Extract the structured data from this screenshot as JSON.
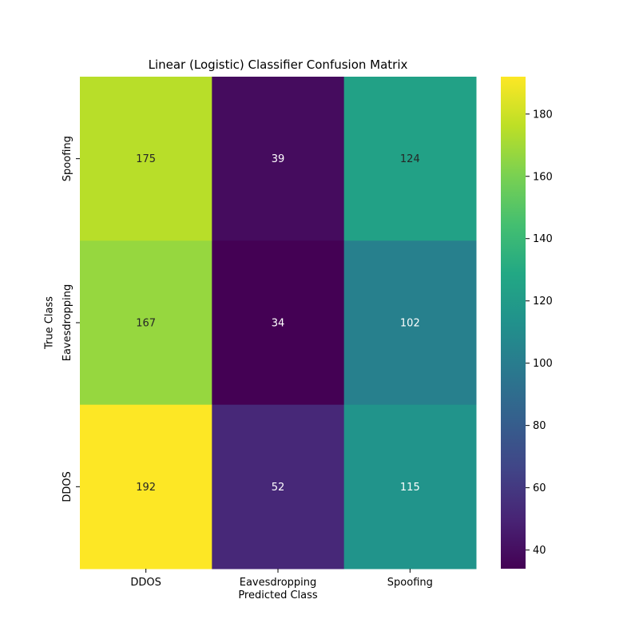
{
  "chart_data": {
    "type": "heatmap",
    "title": "Linear (Logistic) Classifier Confusion Matrix",
    "xlabel": "Predicted Class",
    "ylabel": "True Class",
    "x_categories": [
      "DDOS",
      "Eavesdropping",
      "Spoofing"
    ],
    "y_categories_top_to_bottom": [
      "Spoofing",
      "Eavesdropping",
      "DDOS"
    ],
    "values": [
      [
        175,
        39,
        124
      ],
      [
        167,
        34,
        102
      ],
      [
        192,
        52,
        115
      ]
    ],
    "colormap": "viridis",
    "colorbar": {
      "vmin": 34,
      "vmax": 192,
      "ticks": [
        40,
        60,
        80,
        100,
        120,
        140,
        160,
        180
      ]
    }
  }
}
